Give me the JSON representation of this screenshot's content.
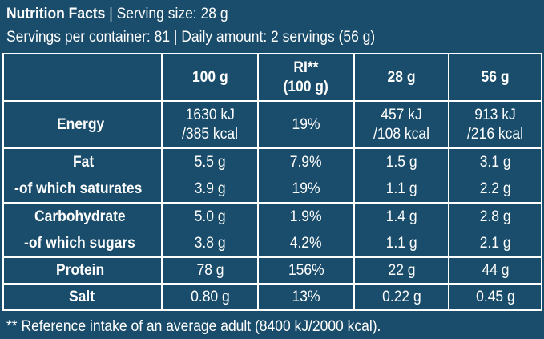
{
  "header": {
    "title": "Nutrition Facts",
    "sep1": " | ",
    "serving_size": "Serving size: 28 g",
    "servings_per_container": "Servings per container: 81",
    "sep2": " | ",
    "daily_amount": "Daily amount: 2 servings (56 g)"
  },
  "table": {
    "columns": [
      "",
      "100 g",
      "RI**",
      "(100 g)",
      "28 g",
      "56 g"
    ],
    "energy": {
      "label": "Energy",
      "v100_kj": "1630 kJ",
      "v100_kcal": "/385 kcal",
      "ri": "19%",
      "v28_kj": "457 kJ",
      "v28_kcal": "/108 kcal",
      "v56_kj": "913 kJ",
      "v56_kcal": "/216 kcal"
    },
    "fat": {
      "label": "Fat",
      "v100": "5.5 g",
      "ri": "7.9%",
      "v28": "1.5 g",
      "v56": "3.1 g",
      "sub_label": "-of which saturates",
      "sub_v100": "3.9 g",
      "sub_ri": "19%",
      "sub_v28": "1.1 g",
      "sub_v56": "2.2 g"
    },
    "carbohydrate": {
      "label": "Carbohydrate",
      "v100": "5.0 g",
      "ri": "1.9%",
      "v28": "1.4 g",
      "v56": "2.8 g",
      "sub_label": "-of which sugars",
      "sub_v100": "3.8 g",
      "sub_ri": "4.2%",
      "sub_v28": "1.1 g",
      "sub_v56": "2.1 g"
    },
    "protein": {
      "label": "Protein",
      "v100": "78 g",
      "ri": "156%",
      "v28": "22 g",
      "v56": "44 g"
    },
    "salt": {
      "label": "Salt",
      "v100": "0.80 g",
      "ri": "13%",
      "v28": "0.22 g",
      "v56": "0.45 g"
    }
  },
  "footnote": "** Reference intake of an average adult (8400 kJ/2000 kcal).",
  "colors": {
    "background": "#1a4d6b",
    "text": "#ffffff",
    "border": "#ffffff"
  }
}
